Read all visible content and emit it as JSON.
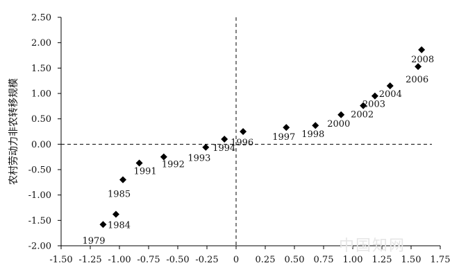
{
  "chart_data": {
    "type": "scatter",
    "title": "",
    "xlabel": "",
    "ylabel": "农村劳动力非农转移规模",
    "xlim": [
      -1.5,
      1.75
    ],
    "ylim": [
      -2.0,
      2.5
    ],
    "x_ticks": [
      "-1.50",
      "-1.25",
      "-1.00",
      "-0.75",
      "-0.50",
      "-0.25",
      "0",
      "0.25",
      "0.50",
      "0.75",
      "1.00",
      "1.25",
      "1.50",
      "1.75"
    ],
    "y_ticks": [
      "2.50",
      "2.00",
      "1.50",
      "1.00",
      "0.50",
      "0.00",
      "-0.50",
      "-1.00",
      "-1.50",
      "-2.00"
    ],
    "reference_lines": {
      "x": 0,
      "y": 0,
      "style": "dashed"
    },
    "grid": false,
    "marker": "diamond",
    "points": [
      {
        "label": "1979",
        "x": -1.14,
        "y": -1.58
      },
      {
        "label": "1984",
        "x": -1.03,
        "y": -1.38
      },
      {
        "label": "1985",
        "x": -0.97,
        "y": -0.7
      },
      {
        "label": "1991",
        "x": -0.83,
        "y": -0.37
      },
      {
        "label": "1992",
        "x": -0.62,
        "y": -0.25
      },
      {
        "label": "1993",
        "x": -0.26,
        "y": -0.06
      },
      {
        "label": "1994",
        "x": -0.1,
        "y": 0.1
      },
      {
        "label": "1996",
        "x": 0.06,
        "y": 0.25
      },
      {
        "label": "1997",
        "x": 0.43,
        "y": 0.33
      },
      {
        "label": "1998",
        "x": 0.68,
        "y": 0.37
      },
      {
        "label": "2000",
        "x": 0.9,
        "y": 0.58
      },
      {
        "label": "2002",
        "x": 1.09,
        "y": 0.76
      },
      {
        "label": "2003",
        "x": 1.19,
        "y": 0.95
      },
      {
        "label": "2004",
        "x": 1.32,
        "y": 1.15
      },
      {
        "label": "2006",
        "x": 1.56,
        "y": 1.53
      },
      {
        "label": "2008",
        "x": 1.59,
        "y": 1.86
      }
    ]
  },
  "watermark": "中国知网"
}
